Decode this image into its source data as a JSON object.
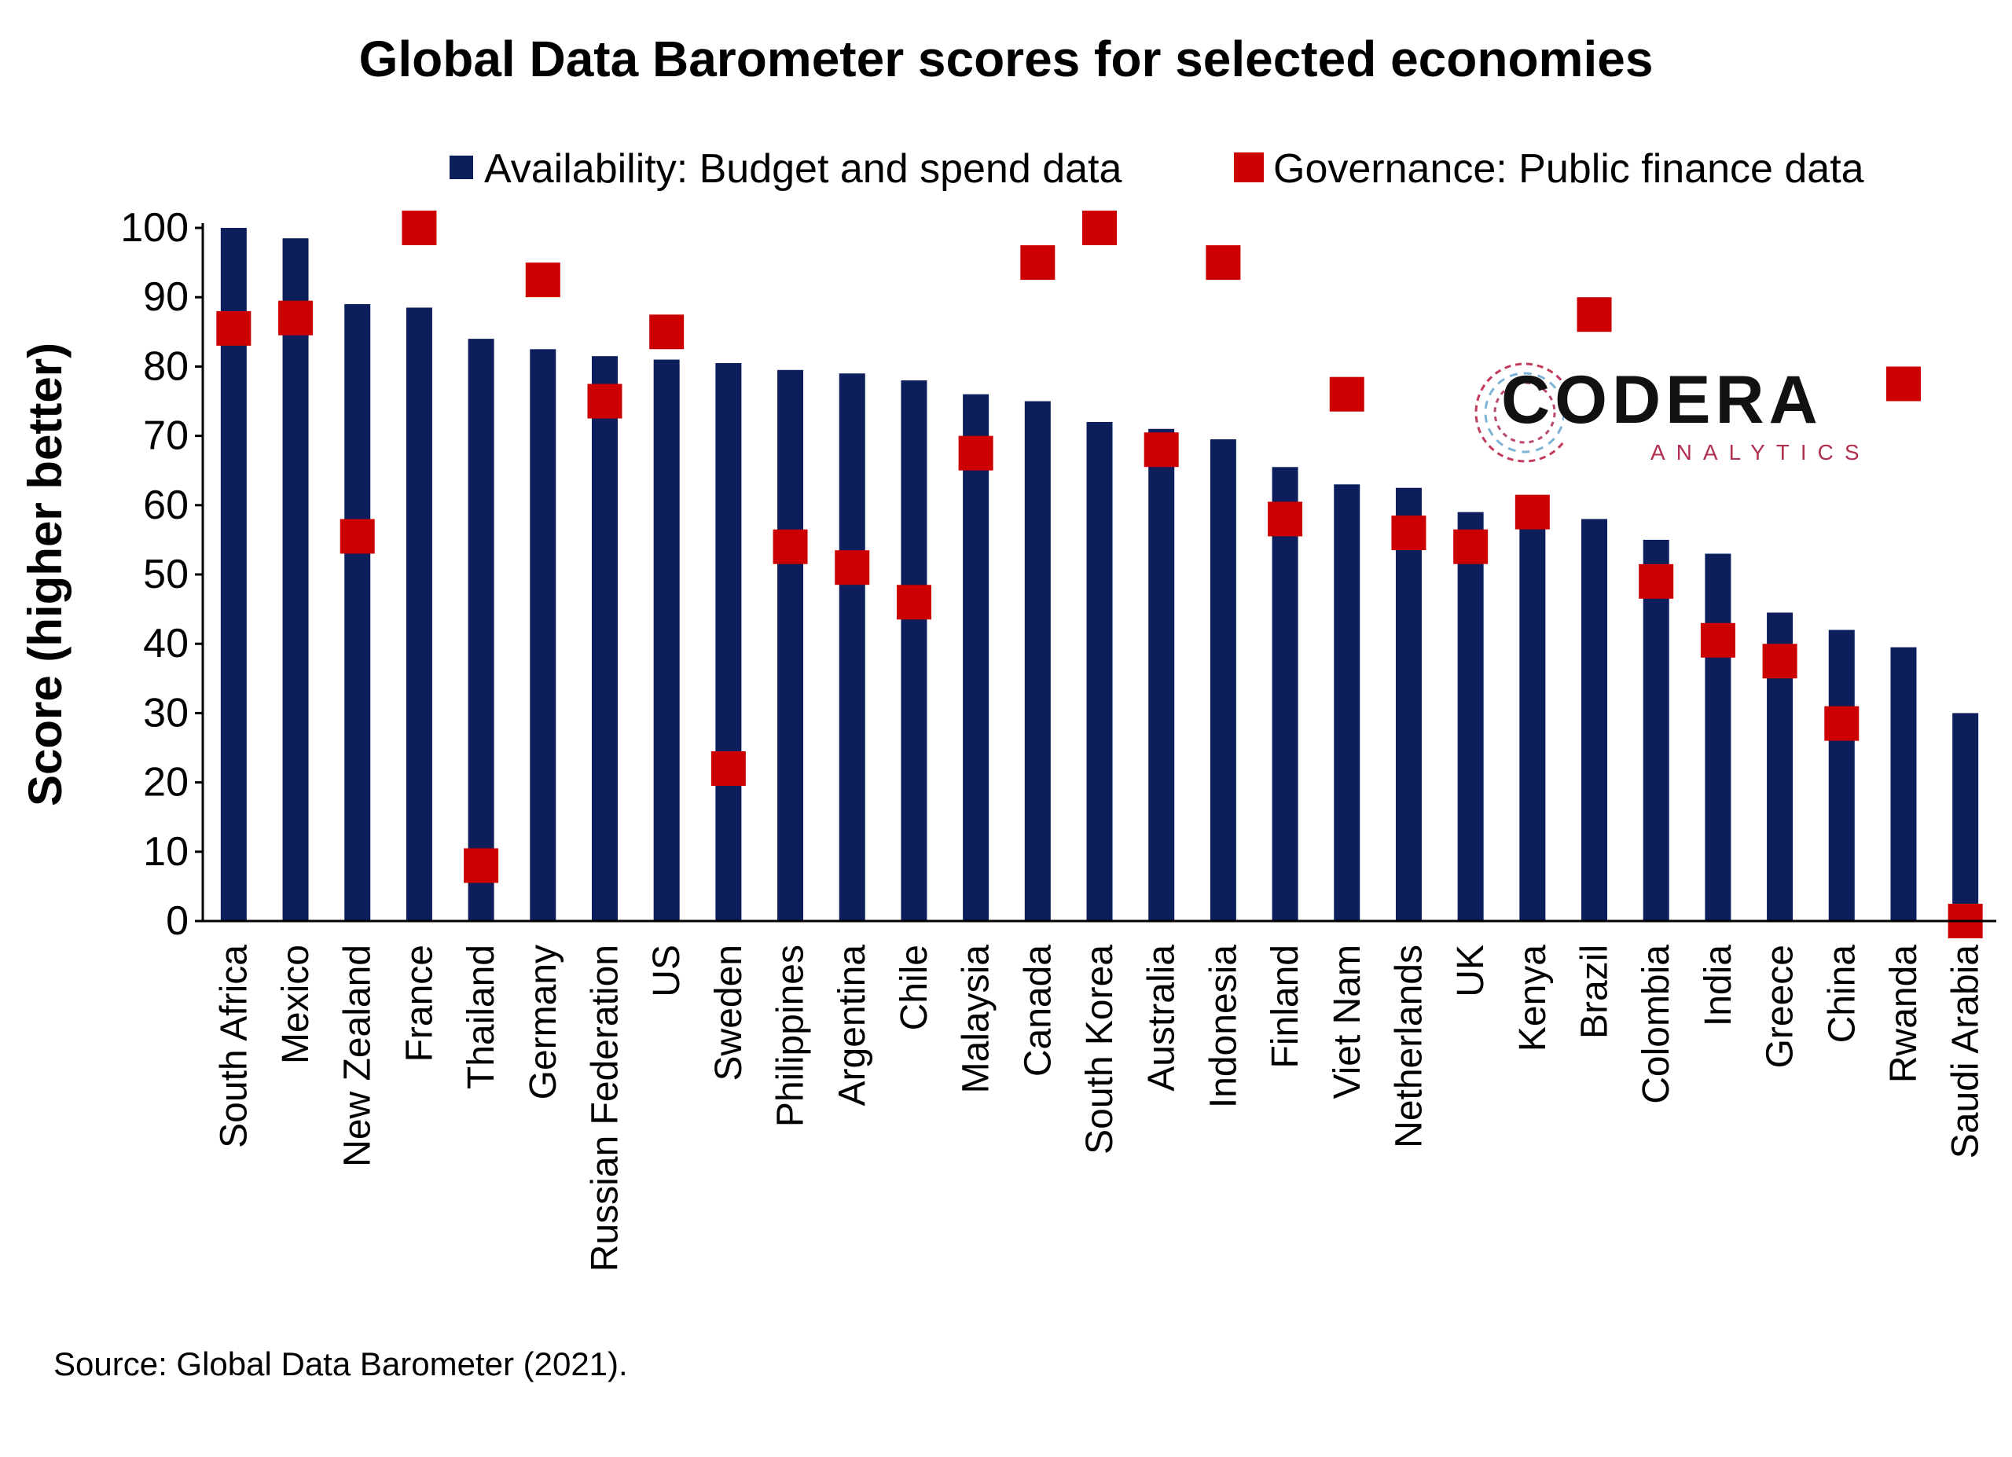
{
  "chart_data": {
    "type": "bar",
    "title": "Global Data Barometer scores for selected economies",
    "ylabel": "Score (higher better)",
    "xlabel": "",
    "ylim": [
      0,
      100
    ],
    "yticks": [
      0,
      10,
      20,
      30,
      40,
      50,
      60,
      70,
      80,
      90,
      100
    ],
    "grid": false,
    "legend_position": "top-right",
    "categories": [
      "South Africa",
      "Mexico",
      "New Zealand",
      "France",
      "Thailand",
      "Germany",
      "Russian Federation",
      "US",
      "Sweden",
      "Philippines",
      "Argentina",
      "Chile",
      "Malaysia",
      "Canada",
      "South Korea",
      "Australia",
      "Indonesia",
      "Finland",
      "Viet Nam",
      "Netherlands",
      "UK",
      "Kenya",
      "Brazil",
      "Colombia",
      "India",
      "Greece",
      "China",
      "Rwanda",
      "Saudi Arabia"
    ],
    "series": [
      {
        "name": "Availability: Budget and spend data",
        "kind": "bar",
        "color": "#0c1f5c",
        "values": [
          100,
          98.5,
          89,
          88.5,
          84,
          82.5,
          81.5,
          81,
          80.5,
          79.5,
          79,
          78,
          76,
          75,
          72,
          71,
          69.5,
          65.5,
          63,
          62.5,
          59,
          58,
          58,
          55,
          53,
          44.5,
          42,
          39.5,
          30
        ]
      },
      {
        "name": "Governance: Public finance data",
        "kind": "marker",
        "color": "#cc0000",
        "values": [
          85.5,
          87,
          55.5,
          100,
          8,
          92.5,
          75,
          85,
          22,
          54,
          51,
          46,
          67.5,
          95,
          100,
          68,
          95,
          58,
          76,
          56,
          54,
          59,
          87.5,
          49,
          40.5,
          37.5,
          28.5,
          77.5,
          0
        ]
      }
    ]
  },
  "source": "Source: Global Data Barometer (2021).",
  "logo": {
    "name": "CODERA",
    "subtitle": "ANALYTICS"
  }
}
